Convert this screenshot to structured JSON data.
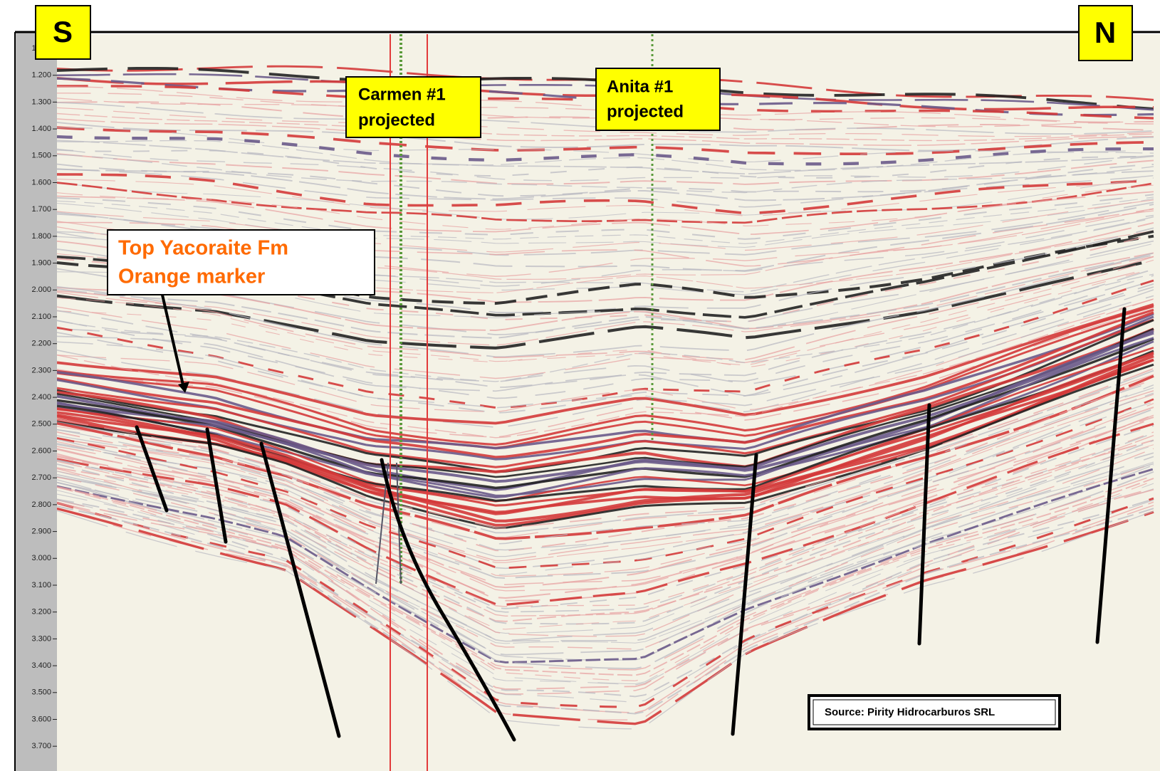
{
  "compass": {
    "left": "S",
    "right": "N"
  },
  "wells": [
    {
      "lines": [
        "Carmen #1",
        "projected"
      ]
    },
    {
      "lines": [
        "Anita #1",
        "projected"
      ]
    }
  ],
  "marker_label": {
    "lines": [
      "Top Yacoraite Fm",
      "Orange marker"
    ]
  },
  "source": "Source:  Pirity Hidrocarburos SRL",
  "time_axis": {
    "labels": [
      "1.100",
      "1.200",
      "1.300",
      "1.400",
      "1.500",
      "1.600",
      "1.700",
      "1.800",
      "1.900",
      "2.000",
      "2.100",
      "2.200",
      "2.300",
      "2.400",
      "2.500",
      "2.600",
      "2.700",
      "2.800",
      "2.900",
      "3.000",
      "3.100",
      "3.200",
      "3.300",
      "3.400",
      "3.500",
      "3.600",
      "3.700"
    ]
  }
}
